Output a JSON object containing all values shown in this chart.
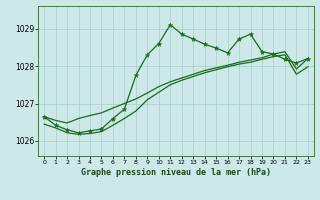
{
  "bg_color": "#cce8e8",
  "grid_color": "#aacccc",
  "line_color": "#1a6b1a",
  "title": "Graphe pression niveau de la mer (hPa)",
  "xlim": [
    -0.5,
    23.5
  ],
  "ylim": [
    1025.6,
    1029.6
  ],
  "yticks": [
    1026,
    1027,
    1028,
    1029
  ],
  "xticks": [
    0,
    1,
    2,
    3,
    4,
    5,
    6,
    7,
    8,
    9,
    10,
    11,
    12,
    13,
    14,
    15,
    16,
    17,
    18,
    19,
    20,
    21,
    22,
    23
  ],
  "s1_x": [
    0,
    1,
    2,
    3,
    4,
    5,
    6,
    7,
    8,
    9,
    10,
    11,
    12,
    13,
    14,
    15,
    16,
    17,
    18,
    19,
    20,
    21,
    22,
    23
  ],
  "s1_y": [
    1026.65,
    1026.42,
    1026.3,
    1026.22,
    1026.27,
    1026.32,
    1026.6,
    1026.85,
    1027.75,
    1028.3,
    1028.6,
    1029.1,
    1028.85,
    1028.72,
    1028.58,
    1028.48,
    1028.35,
    1028.72,
    1028.85,
    1028.38,
    1028.32,
    1028.18,
    1028.08,
    1028.2
  ],
  "s2_x": [
    0,
    1,
    2,
    3,
    4,
    5,
    6,
    7,
    8,
    9,
    10,
    11,
    12,
    13,
    14,
    15,
    16,
    17,
    18,
    19,
    20,
    21,
    22,
    23
  ],
  "s2_y": [
    1026.65,
    1026.55,
    1026.48,
    1026.6,
    1026.68,
    1026.75,
    1026.88,
    1027.0,
    1027.12,
    1027.28,
    1027.45,
    1027.58,
    1027.68,
    1027.78,
    1027.88,
    1027.95,
    1028.02,
    1028.1,
    1028.16,
    1028.22,
    1028.32,
    1028.38,
    1027.92,
    1028.2
  ],
  "s3_x": [
    0,
    1,
    2,
    3,
    4,
    5,
    6,
    7,
    8,
    9,
    10,
    11,
    12,
    13,
    14,
    15,
    16,
    17,
    18,
    19,
    20,
    21,
    22,
    23
  ],
  "s3_y": [
    1026.45,
    1026.35,
    1026.22,
    1026.18,
    1026.2,
    1026.25,
    1026.42,
    1026.6,
    1026.8,
    1027.1,
    1027.3,
    1027.5,
    1027.62,
    1027.72,
    1027.82,
    1027.9,
    1027.98,
    1028.05,
    1028.1,
    1028.18,
    1028.25,
    1028.3,
    1027.78,
    1027.98
  ]
}
